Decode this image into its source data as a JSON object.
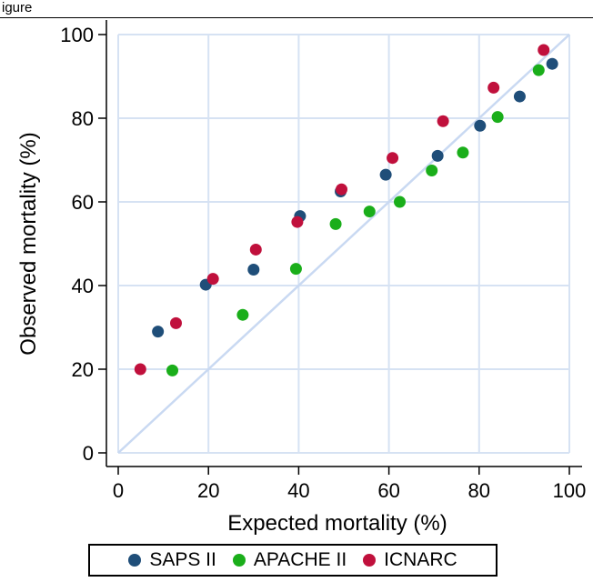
{
  "figure": {
    "label": "igure"
  },
  "chart_data": {
    "type": "scatter",
    "xlabel": "Expected mortality (%)",
    "ylabel": "Observed mortality (%)",
    "xlim": [
      0,
      100
    ],
    "ylim": [
      0,
      100
    ],
    "xticks": [
      0,
      20,
      40,
      60,
      80,
      100
    ],
    "yticks": [
      0,
      20,
      40,
      60,
      80,
      100
    ],
    "grid": true,
    "reference_line": {
      "type": "identity",
      "color": "#c9d9f2"
    },
    "legend_position": "bottom",
    "series": [
      {
        "name": "SAPS II",
        "color": "#1f4e79",
        "points": [
          [
            8.8,
            29
          ],
          [
            19.4,
            40.2
          ],
          [
            30,
            43.8
          ],
          [
            40.3,
            56.6
          ],
          [
            49.3,
            62.5
          ],
          [
            59.3,
            66.5
          ],
          [
            70.8,
            71
          ],
          [
            80.2,
            78.2
          ],
          [
            89,
            85.2
          ],
          [
            96.2,
            93
          ]
        ]
      },
      {
        "name": "APACHE II",
        "color": "#1aae1a",
        "points": [
          [
            12,
            19.7
          ],
          [
            27.6,
            33
          ],
          [
            39.4,
            44
          ],
          [
            48.2,
            54.7
          ],
          [
            55.7,
            57.7
          ],
          [
            62.4,
            60
          ],
          [
            69.5,
            67.5
          ],
          [
            76.4,
            71.8
          ],
          [
            84.1,
            80.3
          ],
          [
            93.2,
            91.5
          ]
        ]
      },
      {
        "name": "ICNARC",
        "color": "#c0103c",
        "points": [
          [
            4.9,
            20
          ],
          [
            12.8,
            31
          ],
          [
            21,
            41.6
          ],
          [
            30.5,
            48.6
          ],
          [
            39.7,
            55.2
          ],
          [
            49.5,
            63
          ],
          [
            60.8,
            70.5
          ],
          [
            72,
            79.3
          ],
          [
            83.2,
            87.3
          ],
          [
            94.3,
            96.3
          ]
        ]
      }
    ]
  }
}
